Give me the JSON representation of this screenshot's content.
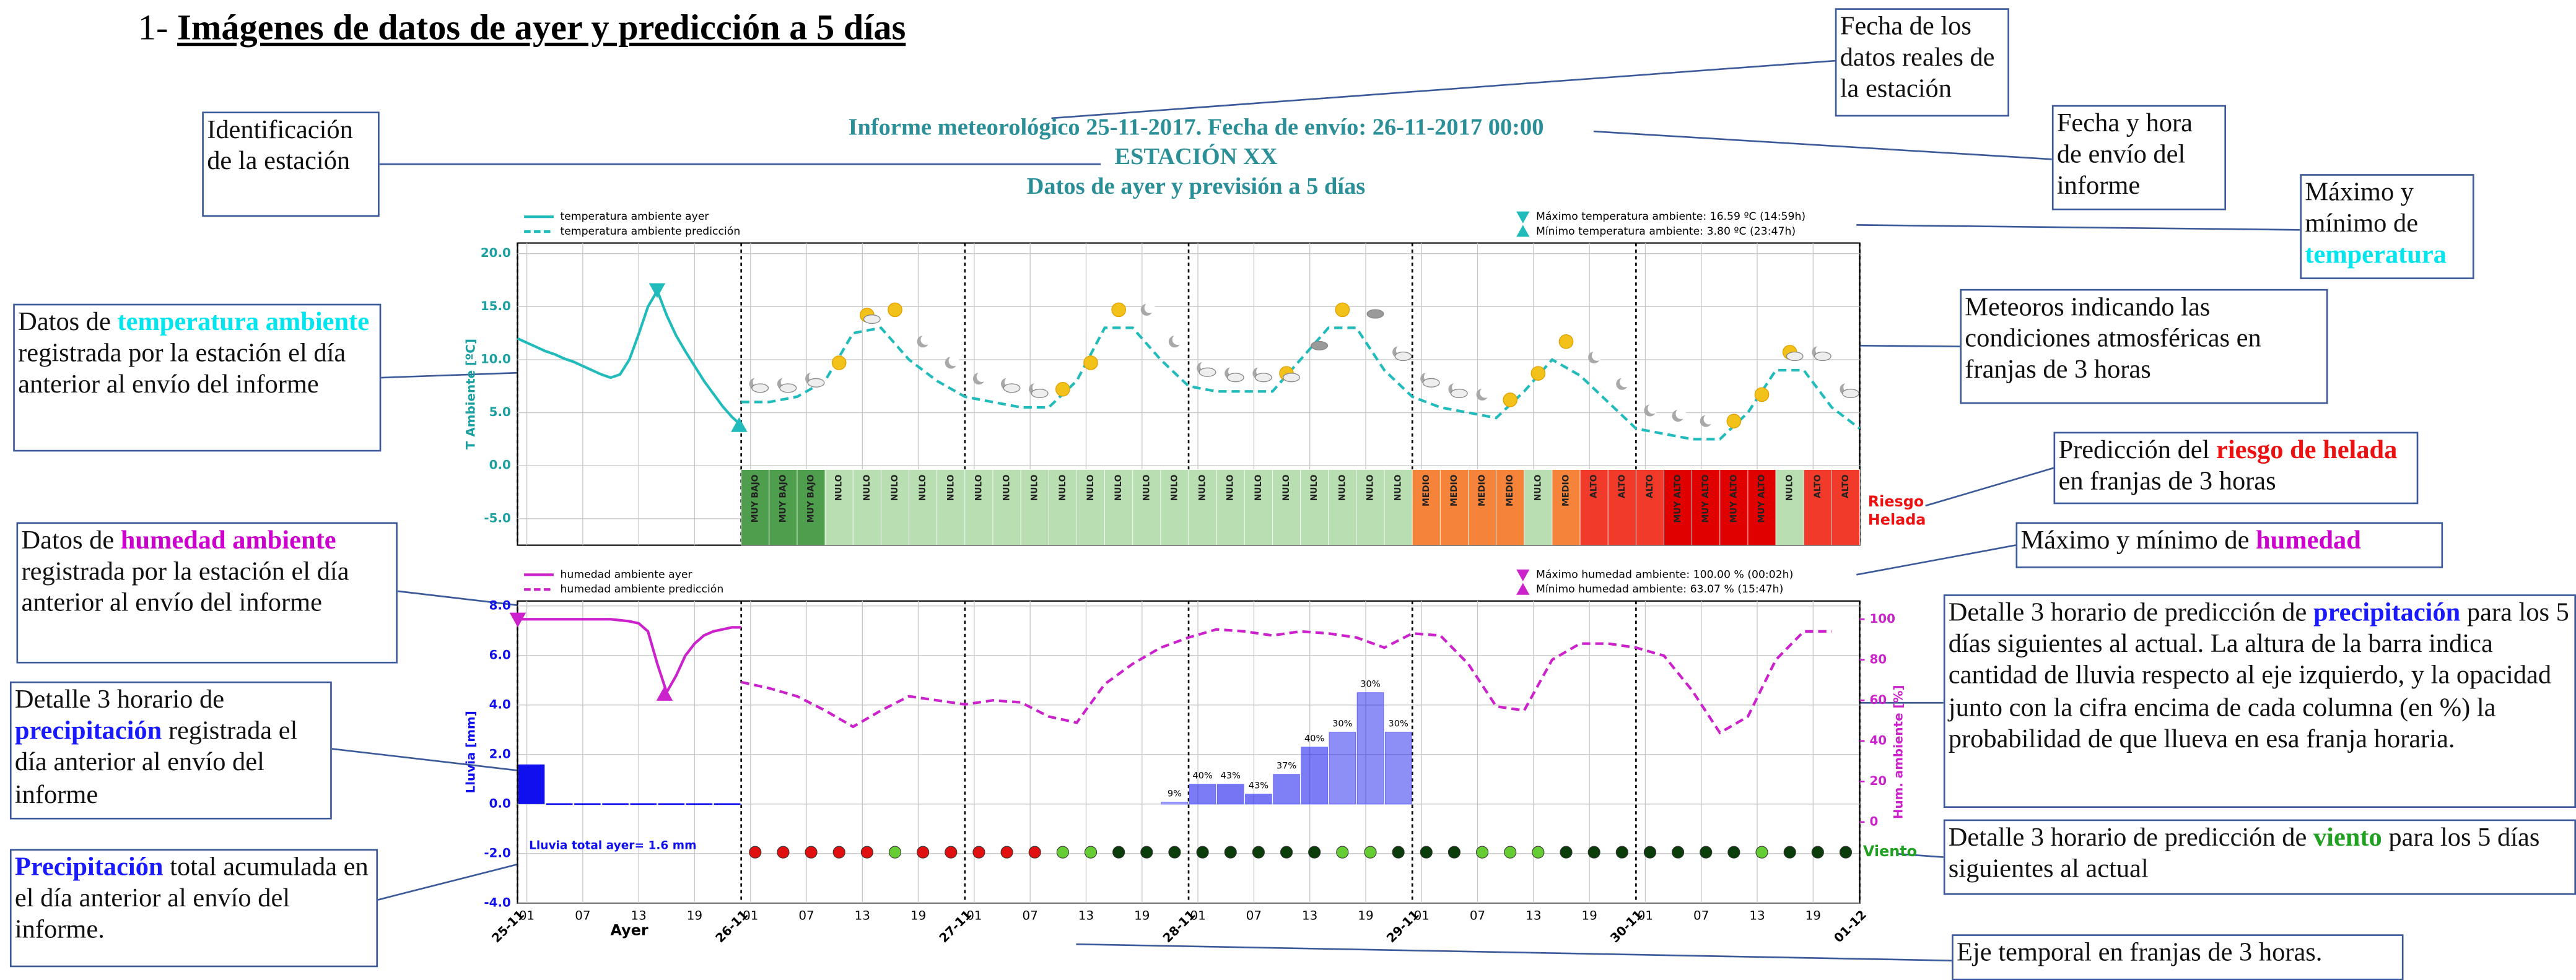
{
  "heading": {
    "number": "1-",
    "title": "Imágenes de datos de ayer y predicción a 5 días"
  },
  "report": {
    "line1": "Informe meteorológico 25-11-2017. Fecha de envío: 26-11-2017 00:00",
    "station": "ESTACIÓN XX",
    "subtitle": "Datos de ayer y previsión a 5 días"
  },
  "callouts": [
    {
      "text": [
        "Fecha de los datos reales de la estación"
      ]
    },
    {
      "text": [
        "Identificación de la estación"
      ]
    },
    {
      "text": [
        "Fecha y hora de envío del informe"
      ]
    },
    {
      "text": [
        "Máximo y mínimo de ",
        {
          "text": "temperatura",
          "color": "#00e5ee"
        }
      ]
    },
    {
      "text": [
        "Meteoros indicando las condiciones atmosféricas en franjas de 3 horas"
      ]
    },
    {
      "text": [
        "Datos de ",
        {
          "text": "temperatura ambiente",
          "color": "#00e5ee"
        },
        " registrada por la estación el día anterior al envío del informe"
      ]
    },
    {
      "text": [
        "Predicción del ",
        {
          "text": "riesgo de helada",
          "color": "#ee1111"
        },
        " en franjas de 3 horas"
      ]
    },
    {
      "text": [
        "Máximo y mínimo de ",
        {
          "text": "humedad",
          "color": "#cc00cc"
        }
      ]
    },
    {
      "text": [
        "Datos de ",
        {
          "text": "humedad ambiente",
          "color": "#cc00cc"
        },
        " registrada por la estación el día anterior al envío del informe"
      ]
    },
    {
      "text": [
        "Detalle 3 horario de predicción de ",
        {
          "text": "precipitación",
          "color": "#1a1aff"
        },
        " para los 5 días siguientes al actual. La altura de la barra indica cantidad de lluvia respecto al eje izquierdo, y la opacidad junto con la cifra encima de cada columna (en %) la probabilidad de que llueva en esa franja horaria."
      ]
    },
    {
      "text": [
        "Detalle 3 horario de ",
        {
          "text": "precipitación",
          "color": "#1a1aff"
        },
        " registrada el día anterior al envío del informe"
      ]
    },
    {
      "text": [
        "Detalle 3 horario de predicción de ",
        {
          "text": "viento",
          "color": "#22a022"
        },
        " para los 5 días siguientes al actual"
      ]
    },
    {
      "text": [
        {
          "text": "Precipitación",
          "color": "#1a1aff"
        },
        " total acumulada en el día anterior al envío del informe."
      ]
    },
    {
      "text": [
        "Eje temporal en franjas de 3 horas."
      ]
    }
  ],
  "chart_data": [
    {
      "type": "line",
      "ylabel": "T Ambiente [ºC]",
      "ylim": [
        -7.5,
        21
      ],
      "xlim": [
        0,
        144
      ],
      "grid": true,
      "yticks": [
        {
          "value": 20,
          "label": "20.0"
        },
        {
          "value": 15,
          "label": "15.0"
        },
        {
          "value": 10,
          "label": "10.0"
        },
        {
          "value": 5,
          "label": "5.0"
        },
        {
          "value": 0,
          "label": "0.0"
        },
        {
          "value": -5,
          "label": "-5.0"
        }
      ],
      "series": [
        {
          "name": "temperatura ambiente ayer",
          "color": "#22bbbb",
          "dashed": false,
          "x": [
            0,
            1,
            2,
            3,
            4,
            5,
            6,
            7,
            8,
            9,
            10,
            11,
            12,
            13,
            14,
            15,
            16,
            17,
            18,
            19,
            20,
            21,
            22,
            23,
            24
          ],
          "values": [
            12.0,
            11.6,
            11.2,
            10.8,
            10.5,
            10.1,
            9.8,
            9.4,
            9.0,
            8.6,
            8.3,
            8.6,
            10.0,
            12.4,
            15.0,
            16.5,
            14.2,
            12.3,
            10.8,
            9.4,
            8.0,
            6.8,
            5.6,
            4.6,
            3.8
          ]
        },
        {
          "name": "temperatura ambiente predicción",
          "color": "#22bbbb",
          "dashed": true,
          "x": [
            24,
            27,
            30,
            33,
            36,
            39,
            42,
            45,
            48,
            51,
            54,
            57,
            60,
            63,
            66,
            69,
            72,
            75,
            78,
            81,
            84,
            87,
            90,
            93,
            96,
            99,
            102,
            105,
            108,
            111,
            114,
            117,
            120,
            123,
            126,
            129,
            132,
            135,
            138,
            141,
            144
          ],
          "values": [
            6,
            6,
            6.5,
            8,
            12.5,
            13,
            10,
            8,
            6.5,
            6,
            5.5,
            5.5,
            8,
            13,
            13,
            10,
            7.5,
            7,
            7,
            7,
            10,
            13,
            13,
            9,
            6.5,
            5.5,
            5,
            4.5,
            7,
            10,
            8.5,
            6,
            3.5,
            3,
            2.5,
            2.5,
            5,
            9,
            9,
            5.5,
            3.5
          ]
        }
      ],
      "extremes": [
        {
          "label": "Máximo temperatura ambiente: 16.59 ºC (14:59h)",
          "x": 14.98,
          "value": 16.59,
          "marker": "down",
          "color": "#22bbbb"
        },
        {
          "label": "Mínimo temperatura ambiente: 3.80 ºC (23:47h)",
          "x": 23.78,
          "value": 3.8,
          "marker": "up",
          "color": "#22bbbb"
        }
      ],
      "slots": [
        24,
        27,
        30,
        33,
        36,
        39,
        42,
        45,
        48,
        51,
        54,
        57,
        60,
        63,
        66,
        69,
        72,
        75,
        78,
        81,
        84,
        87,
        90,
        93,
        96,
        99,
        102,
        105,
        108,
        111,
        114,
        117,
        120,
        123,
        126,
        129,
        132,
        135,
        138,
        141
      ],
      "frost_risk": {
        "label": [
          "Riesgo",
          "Helada"
        ],
        "label_color": "#ee1111",
        "levels": [
          "MUY BAJO",
          "MUY BAJO",
          "MUY BAJO",
          "NULO",
          "NULO",
          "NULO",
          "NULO",
          "NULO",
          "NULO",
          "NULO",
          "NULO",
          "NULO",
          "NULO",
          "NULO",
          "NULO",
          "NULO",
          "NULO",
          "NULO",
          "NULO",
          "NULO",
          "NULO",
          "NULO",
          "NULO",
          "NULO",
          "MEDIO",
          "MEDIO",
          "MEDIO",
          "MEDIO",
          "NULO",
          "MEDIO",
          "ALTO",
          "ALTO",
          "ALTO",
          "MUY ALTO",
          "MUY ALTO",
          "MUY ALTO",
          "MUY ALTO",
          "NULO",
          "ALTO",
          "ALTO"
        ],
        "colors": {
          "MUY BAJO": "#4e9e4e",
          "NULO": "#b8deb2",
          "MEDIO": "#f5843a",
          "ALTO": "#f23a2a",
          "MUY ALTO": "#e00000"
        }
      },
      "meteors": [
        "moon-cloud",
        "moon-cloud",
        "moon-cloud",
        "sun",
        "sun-cloud",
        "sun",
        "moon",
        "moon",
        "moon",
        "moon-cloud",
        "moon-cloud",
        "sun",
        "sun",
        "sun",
        "moon",
        "moon",
        "moon-cloud",
        "moon-cloud",
        "moon-cloud",
        "sun-cloud",
        "cloud",
        "sun",
        "cloud",
        "moon-cloud",
        "moon-cloud",
        "moon-cloud",
        "moon",
        "sun",
        "sun",
        "sun",
        "moon",
        "moon",
        "moon",
        "moon",
        "moon",
        "sun",
        "sun",
        "sun-cloud",
        "moon-cloud",
        "moon-cloud"
      ]
    },
    {
      "type": "bar-line",
      "ylabel": "Lluvia [mm]",
      "y2label": "Hum. ambiente [%]",
      "xlabel": "Ayer",
      "ylim": [
        -4,
        8.2
      ],
      "y2lim": [
        -40,
        109
      ],
      "xlim": [
        0,
        144
      ],
      "grid": true,
      "yticks": [
        {
          "value": 8,
          "label": "8.0"
        },
        {
          "value": 6,
          "label": "6.0"
        },
        {
          "value": 4,
          "label": "4.0"
        },
        {
          "value": 2,
          "label": "2.0"
        },
        {
          "value": 0,
          "label": "0.0"
        },
        {
          "value": -2,
          "label": "-2.0"
        },
        {
          "value": -4,
          "label": "-4.0"
        }
      ],
      "y2ticks": [
        0,
        20,
        40,
        60,
        80,
        100
      ],
      "xticks": [
        {
          "value": 1,
          "label": "01"
        },
        {
          "value": 7,
          "label": "07"
        },
        {
          "value": 13,
          "label": "13"
        },
        {
          "value": 19,
          "label": "19"
        },
        {
          "value": 25,
          "label": "01"
        },
        {
          "value": 31,
          "label": "07"
        },
        {
          "value": 37,
          "label": "13"
        },
        {
          "value": 43,
          "label": "19"
        },
        {
          "value": 49,
          "label": "01"
        },
        {
          "value": 55,
          "label": "07"
        },
        {
          "value": 61,
          "label": "13"
        },
        {
          "value": 67,
          "label": "19"
        },
        {
          "value": 73,
          "label": "01"
        },
        {
          "value": 79,
          "label": "07"
        },
        {
          "value": 85,
          "label": "13"
        },
        {
          "value": 91,
          "label": "19"
        },
        {
          "value": 97,
          "label": "01"
        },
        {
          "value": 103,
          "label": "07"
        },
        {
          "value": 109,
          "label": "13"
        },
        {
          "value": 115,
          "label": "19"
        },
        {
          "value": 121,
          "label": "01"
        },
        {
          "value": 127,
          "label": "07"
        },
        {
          "value": 133,
          "label": "13"
        },
        {
          "value": 139,
          "label": "19"
        }
      ],
      "day_ticks": [
        {
          "value": 0,
          "label": "25-11"
        },
        {
          "value": 24,
          "label": "26-11"
        },
        {
          "value": 48,
          "label": "27-11"
        },
        {
          "value": 72,
          "label": "28-11"
        },
        {
          "value": 96,
          "label": "29-11"
        },
        {
          "value": 120,
          "label": "30-11"
        },
        {
          "value": 144,
          "label": "01-12"
        }
      ],
      "series": [
        {
          "name": "humedad ambiente ayer",
          "color": "#cc22cc",
          "dashed": false,
          "axis": "y2",
          "x": [
            0,
            1,
            2,
            3,
            4,
            5,
            6,
            7,
            8,
            9,
            10,
            11,
            12,
            13,
            14,
            15,
            16,
            17,
            18,
            19,
            20,
            21,
            22,
            23,
            24
          ],
          "values": [
            100,
            100,
            100,
            100,
            100,
            100,
            100,
            100,
            100,
            100,
            100,
            99.5,
            99,
            98,
            94,
            78,
            64,
            72,
            82,
            88,
            92,
            94,
            95,
            96,
            96
          ]
        },
        {
          "name": "humedad ambiente predicción",
          "color": "#cc22cc",
          "dashed": true,
          "axis": "y2",
          "x": [
            24,
            27,
            30,
            33,
            36,
            39,
            42,
            45,
            48,
            51,
            54,
            57,
            60,
            63,
            66,
            69,
            72,
            75,
            78,
            81,
            84,
            87,
            90,
            93,
            96,
            99,
            102,
            105,
            108,
            111,
            114,
            117,
            120,
            123,
            126,
            129,
            132,
            135,
            138,
            141
          ],
          "values": [
            69,
            66,
            62,
            55,
            47,
            55,
            62,
            60,
            58,
            60,
            59,
            52,
            49,
            68,
            78,
            86,
            91,
            95,
            94,
            92,
            94,
            93,
            91,
            86,
            93,
            92,
            78,
            57,
            55,
            80,
            88,
            88,
            86,
            82,
            65,
            44,
            52,
            80,
            94,
            94
          ]
        }
      ],
      "extremes": [
        {
          "label": "Máximo humedad ambiente: 100.00 % (00:02h)",
          "x": 0.03,
          "value": 100,
          "marker": "down",
          "color": "#cc22cc"
        },
        {
          "label": "Mínimo humedad ambiente: 63.07 % (15:47h)",
          "x": 15.78,
          "value": 63.07,
          "marker": "up",
          "color": "#cc22cc"
        }
      ],
      "rain_yesterday": {
        "color": "#1010ee",
        "total_label": "Lluvia total ayer=   1.6 mm",
        "x": [
          0,
          3,
          6,
          9,
          12,
          15,
          18,
          21
        ],
        "values": [
          1.6,
          0,
          0,
          0,
          0,
          0,
          0,
          0
        ]
      },
      "rain_forecast": {
        "color": "#1010ee",
        "x": [
          69,
          72,
          75,
          78,
          81,
          84,
          87,
          90,
          93
        ],
        "values": [
          0.07,
          0.8,
          0.8,
          0.4,
          1.2,
          2.3,
          2.9,
          4.5,
          2.9
        ],
        "probability": [
          9,
          40,
          43,
          43,
          37,
          40,
          30,
          30,
          30
        ],
        "probability_labels": [
          "9%",
          "40%",
          "43%",
          "43%",
          "37%",
          "40%",
          "30%",
          "30%",
          "30%"
        ]
      },
      "wind": {
        "label": "Viento",
        "label_color": "#22a022",
        "x": [
          24,
          27,
          30,
          33,
          36,
          39,
          42,
          45,
          48,
          51,
          54,
          57,
          60,
          63,
          66,
          69,
          72,
          75,
          78,
          81,
          84,
          87,
          90,
          93,
          96,
          99,
          102,
          105,
          108,
          111,
          114,
          117,
          120,
          123,
          126,
          129,
          132,
          135,
          138,
          141
        ],
        "colors": [
          "#e01010",
          "#e01010",
          "#e01010",
          "#e01010",
          "#e01010",
          "#66cc33",
          "#e01010",
          "#e01010",
          "#e01010",
          "#e01010",
          "#e01010",
          "#66cc33",
          "#66cc33",
          "#0b3d0b",
          "#0b3d0b",
          "#0b3d0b",
          "#0b3d0b",
          "#0b3d0b",
          "#0b3d0b",
          "#0b3d0b",
          "#0b3d0b",
          "#66cc33",
          "#66cc33",
          "#0b3d0b",
          "#0b3d0b",
          "#0b3d0b",
          "#66cc33",
          "#66cc33",
          "#66cc33",
          "#0b3d0b",
          "#0b3d0b",
          "#0b3d0b",
          "#0b3d0b",
          "#0b3d0b",
          "#0b3d0b",
          "#0b3d0b",
          "#66cc33",
          "#0b3d0b",
          "#0b3d0b",
          "#0b3d0b"
        ]
      }
    }
  ]
}
